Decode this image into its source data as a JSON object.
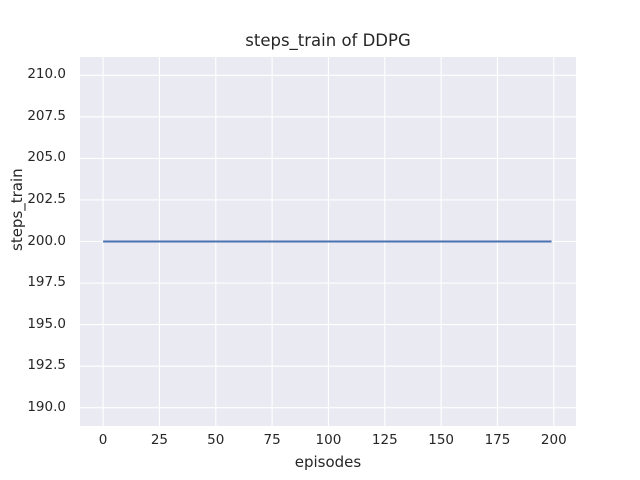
{
  "figure": {
    "title": "steps_train of DDPG",
    "xlabel": "episodes",
    "ylabel": "steps_train"
  },
  "chart_data": {
    "type": "line",
    "title": "steps_train of DDPG",
    "xlabel": "episodes",
    "ylabel": "steps_train",
    "xlim": [
      -10.25,
      209.85
    ],
    "ylim": [
      188.9,
      211.1
    ],
    "x_ticks": [
      0,
      25,
      50,
      75,
      100,
      125,
      150,
      175,
      200
    ],
    "x_tick_labels": [
      "0",
      "25",
      "50",
      "75",
      "100",
      "125",
      "150",
      "175",
      "200"
    ],
    "y_ticks": [
      190.0,
      192.5,
      195.0,
      197.5,
      200.0,
      202.5,
      205.0,
      207.5,
      210.0
    ],
    "y_tick_labels": [
      "190.0",
      "192.5",
      "195.0",
      "197.5",
      "200.0",
      "202.5",
      "205.0",
      "207.5",
      "210.0"
    ],
    "grid": true,
    "legend": "none",
    "series": [
      {
        "name": "steps_train",
        "x": [
          0,
          199
        ],
        "y": [
          200,
          200
        ],
        "color": "#4c72b0",
        "linewidth": 2
      }
    ],
    "style": {
      "figure_bg": "#ffffff",
      "plot_bg": "#eaeaf2",
      "grid_color": "#ffffff",
      "text_color": "#262626"
    }
  }
}
